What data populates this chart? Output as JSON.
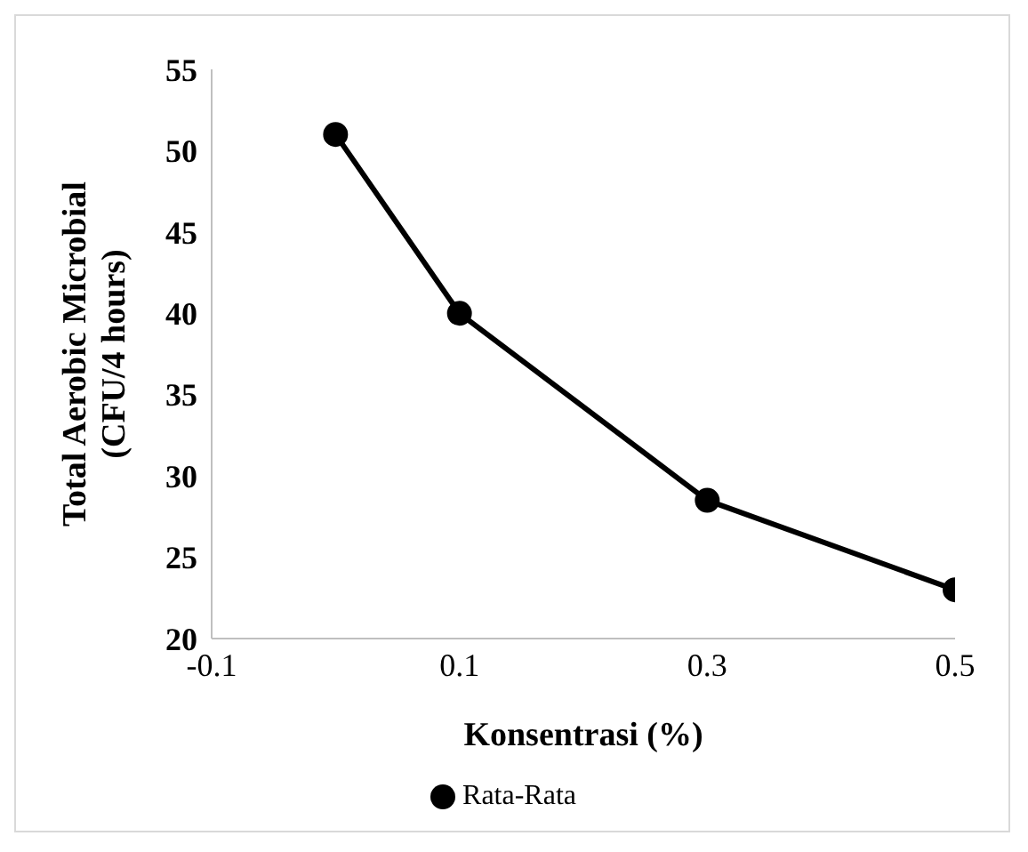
{
  "chart_data": {
    "type": "line",
    "xlabel": "Konsentrasi (%)",
    "ylabel": "Total Aerobic Microbial\n(CFU/4 hours)",
    "x": [
      0,
      0.1,
      0.3,
      0.5
    ],
    "series": [
      {
        "name": "Rata-Rata",
        "color": "#000000",
        "values": [
          51,
          40,
          28.5,
          23
        ]
      }
    ],
    "xlim": [
      -0.1,
      0.5
    ],
    "xticks": [
      -0.1,
      0.1,
      0.3,
      0.5
    ],
    "ylim": [
      20,
      55
    ],
    "yticks": [
      20,
      25,
      30,
      35,
      40,
      45,
      50,
      55
    ],
    "grid": false,
    "legend": "bottom",
    "marker": "circle",
    "line_style": "solid"
  }
}
